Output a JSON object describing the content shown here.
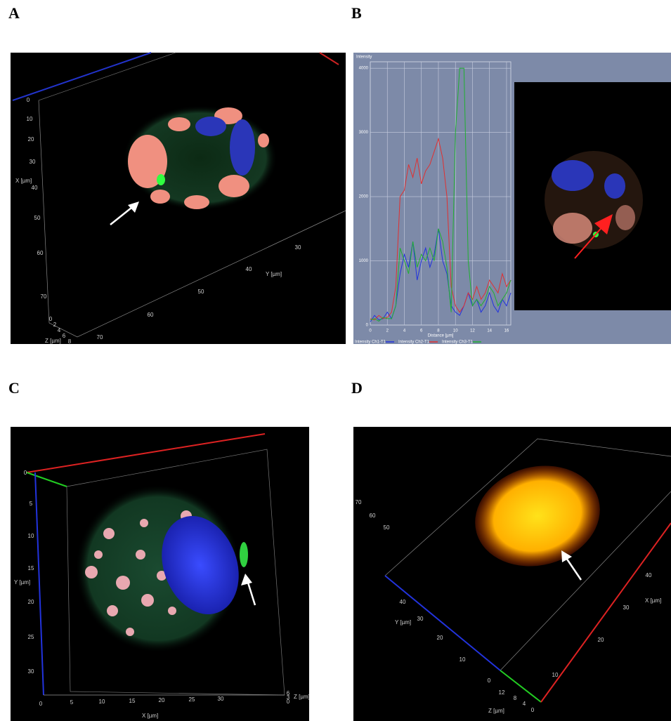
{
  "figure": {
    "panels": [
      {
        "label": "A",
        "axes": [
          {
            "title": "X [µm]",
            "ticks": [
              0,
              10,
              20,
              30,
              40,
              50,
              60,
              70
            ]
          },
          {
            "title": "Y [µm]",
            "ticks": [
              30,
              40,
              50,
              60,
              70
            ]
          },
          {
            "title": "Z [µm]",
            "ticks": [
              0,
              2,
              4,
              6,
              8
            ]
          }
        ]
      },
      {
        "label": "B",
        "axes": []
      },
      {
        "label": "C",
        "axes": [
          {
            "title": "Y [µm]",
            "ticks": [
              0,
              5,
              10,
              15,
              20,
              25,
              30
            ]
          },
          {
            "title": "X [µm]",
            "ticks": [
              0,
              5,
              10,
              15,
              20,
              25,
              30
            ]
          },
          {
            "title": "Z [µm]",
            "ticks": [
              6,
              3,
              0
            ]
          }
        ]
      },
      {
        "label": "D",
        "axes": [
          {
            "title": "Y [µm]",
            "ticks": [
              70,
              60,
              50,
              40,
              30,
              20,
              10,
              0
            ]
          },
          {
            "title": "X [µm]",
            "ticks": [
              10,
              20,
              30,
              40
            ]
          },
          {
            "title": "Z [µm]",
            "ticks": [
              12,
              8,
              4,
              0
            ]
          }
        ]
      }
    ]
  },
  "chart_data": {
    "type": "line",
    "title": "Intensity",
    "x_label": "Distance [µm]",
    "x": [
      0,
      0.5,
      1,
      1.5,
      2,
      2.5,
      3,
      3.5,
      4,
      4.5,
      5,
      5.5,
      6,
      6.5,
      7,
      7.5,
      8,
      8.5,
      9,
      9.5,
      10,
      10.5,
      11,
      11.5,
      12,
      12.5,
      13,
      13.5,
      14,
      14.5,
      15,
      15.5,
      16,
      16.5
    ],
    "series": [
      {
        "name": "Intensity Ch1-T1",
        "color": "#2233dd",
        "values": [
          50,
          150,
          80,
          100,
          200,
          100,
          300,
          800,
          1100,
          900,
          1300,
          700,
          1000,
          1200,
          900,
          1100,
          1500,
          1000,
          800,
          300,
          200,
          150,
          300,
          500,
          300,
          400,
          200,
          300,
          500,
          300,
          200,
          400,
          300,
          500
        ]
      },
      {
        "name": "Intensity Ch2-T1",
        "color": "#e03030",
        "values": [
          100,
          80,
          150,
          100,
          120,
          200,
          600,
          2000,
          2100,
          2500,
          2300,
          2600,
          2200,
          2400,
          2500,
          2700,
          2900,
          2600,
          2000,
          600,
          300,
          200,
          300,
          500,
          400,
          600,
          400,
          500,
          700,
          600,
          500,
          800,
          600,
          700
        ]
      },
      {
        "name": "Intensity Ch3-T1",
        "color": "#20b030",
        "values": [
          80,
          100,
          60,
          120,
          100,
          100,
          300,
          1200,
          1000,
          800,
          1300,
          900,
          1100,
          1000,
          1200,
          1000,
          1500,
          1300,
          900,
          200,
          3000,
          4000,
          4000,
          1000,
          300,
          400,
          300,
          400,
          600,
          500,
          300,
          400,
          500,
          700
        ]
      }
    ],
    "xlim": [
      0,
      16.5
    ],
    "ylim": [
      0,
      4100
    ],
    "xticks": [
      0,
      2,
      4,
      6,
      8,
      10,
      12,
      14,
      16
    ],
    "yticks": [
      0,
      1000,
      2000,
      3000,
      4000
    ],
    "grid": true
  }
}
